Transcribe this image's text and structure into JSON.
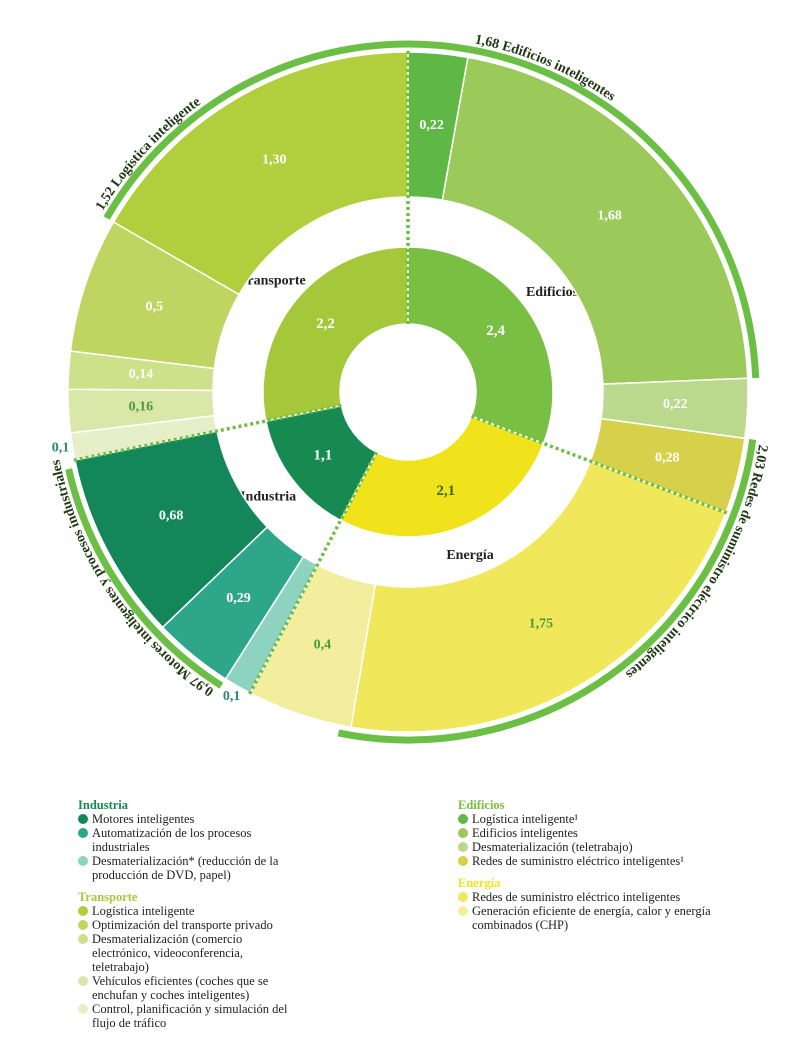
{
  "chart_data": {
    "type": "sunburst",
    "groups": [
      {
        "name": "Edificios",
        "value": 2.4,
        "value_label": "2,4",
        "color": "#79bf43",
        "items": [
          {
            "name": "Logística inteligente¹",
            "value": 0.22,
            "value_label": "0,22",
            "color": "#5fb846"
          },
          {
            "name": "Edificios inteligentes",
            "value": 1.68,
            "value_label": "1,68",
            "color": "#9bc95a"
          },
          {
            "name": "Desmaterialización (teletrabajo)",
            "value": 0.22,
            "value_label": "0,22",
            "color": "#bad98c"
          },
          {
            "name": "Redes de suministro eléctrico inteligentes¹",
            "value": 0.28,
            "value_label": "0,28",
            "color": "#d6d04a"
          }
        ]
      },
      {
        "name": "Energía",
        "value": 2.1,
        "value_label": "2,1",
        "color": "#f0e31b",
        "items": [
          {
            "name": "Redes de suministro eléctrico inteligentes",
            "value": 1.75,
            "value_label": "1,75",
            "color": "#f0e85a"
          },
          {
            "name": "Generación eficiente de energía, calor y energía combinados (CHP)",
            "value": 0.4,
            "value_label": "0,4",
            "color": "#f2ee9e"
          }
        ]
      },
      {
        "name": "Industria",
        "value": 1.1,
        "value_label": "1,1",
        "color": "#168a50",
        "items": [
          {
            "name": "Motores inteligentes",
            "value": 0.68,
            "value_label": "0,68",
            "color": "#13875a"
          },
          {
            "name": "Automatización de los procesos industriales",
            "value": 0.29,
            "value_label": "0,29",
            "color": "#2ea68a"
          },
          {
            "name": "Desmaterialización* (reducción de la producción de DVD, papel)",
            "value": 0.1,
            "value_label": "0,1",
            "color": "#8ed2c0"
          }
        ]
      },
      {
        "name": "Transporte",
        "value": 2.2,
        "value_label": "2,2",
        "color": "#a5c73a",
        "items": [
          {
            "name": "Logística inteligente",
            "value": 1.3,
            "value_label": "1,30",
            "color": "#b1ce3c"
          },
          {
            "name": "Optimización del transporte privado",
            "value": 0.5,
            "value_label": "0,5",
            "color": "#bfd461"
          },
          {
            "name": "Desmaterialización (comercio electrónico, videoconferencia, teletrabajo)",
            "value": 0.14,
            "value_label": "0,14",
            "color": "#cde08a"
          },
          {
            "name": "Vehículos eficientes (coches que se enchufan y coches inteligentes)",
            "value": 0.16,
            "value_label": "0,16",
            "color": "#d9e8a8"
          },
          {
            "name": "Control, planificación y simulación del flujo de tráfico",
            "value": 0.1,
            "value_label": "0,1",
            "color": "#e7efc8"
          }
        ]
      }
    ],
    "annotations": [
      {
        "value": 1.52,
        "label": "1,52 Logística inteligente"
      },
      {
        "value": 1.68,
        "label": "1,68 Edificios inteligentes"
      },
      {
        "value": 2.03,
        "label": "2,03 Redes de suministro eléctrico inteligentes"
      },
      {
        "value": 0.97,
        "label": "0,97 Motores inteligentes y procesos industriales"
      }
    ],
    "annotation_color": "#6cbf45"
  }
}
